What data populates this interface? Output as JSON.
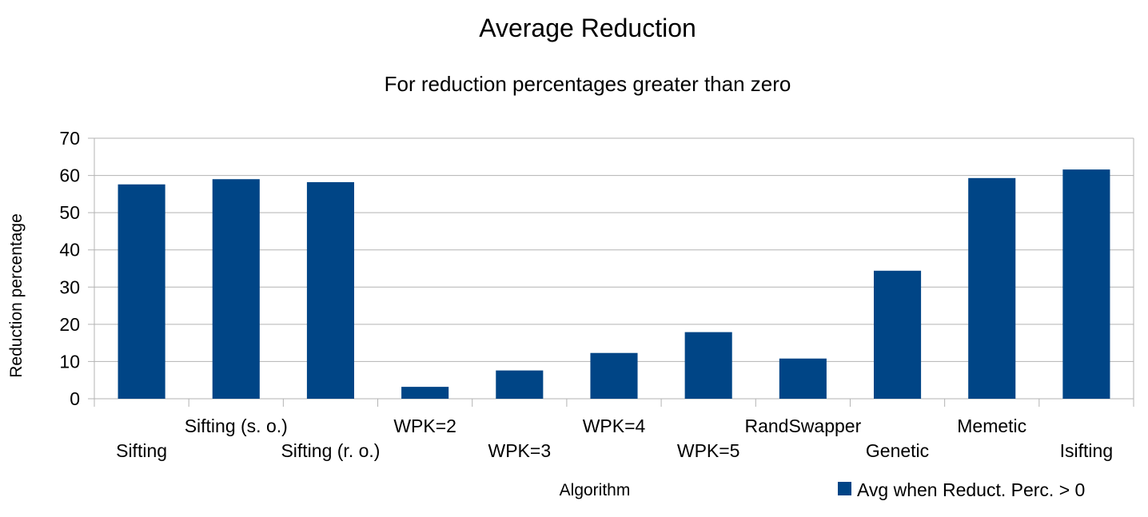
{
  "chart_data": {
    "type": "bar",
    "title": "Average Reduction",
    "subtitle": "For reduction percentages greater than zero",
    "xlabel": "Algorithm",
    "ylabel": "Reduction percentage",
    "categories": [
      "Sifting",
      "Sifting (s. o.)",
      "Sifting (r. o.)",
      "WPK=2",
      "WPK=3",
      "WPK=4",
      "WPK=5",
      "RandSwapper",
      "Genetic",
      "Memetic",
      "Isifting"
    ],
    "series": [
      {
        "name": "Avg when Reduct. Perc. > 0",
        "values": [
          57.6,
          59.0,
          58.2,
          3.2,
          7.6,
          12.3,
          17.9,
          10.8,
          34.4,
          59.3,
          61.6
        ]
      }
    ],
    "yticks": [
      0,
      10,
      20,
      30,
      40,
      50,
      60,
      70
    ],
    "ylim": [
      0,
      70
    ],
    "grid": true,
    "legend_position": "bottom-right",
    "bar_color": "#004586"
  }
}
